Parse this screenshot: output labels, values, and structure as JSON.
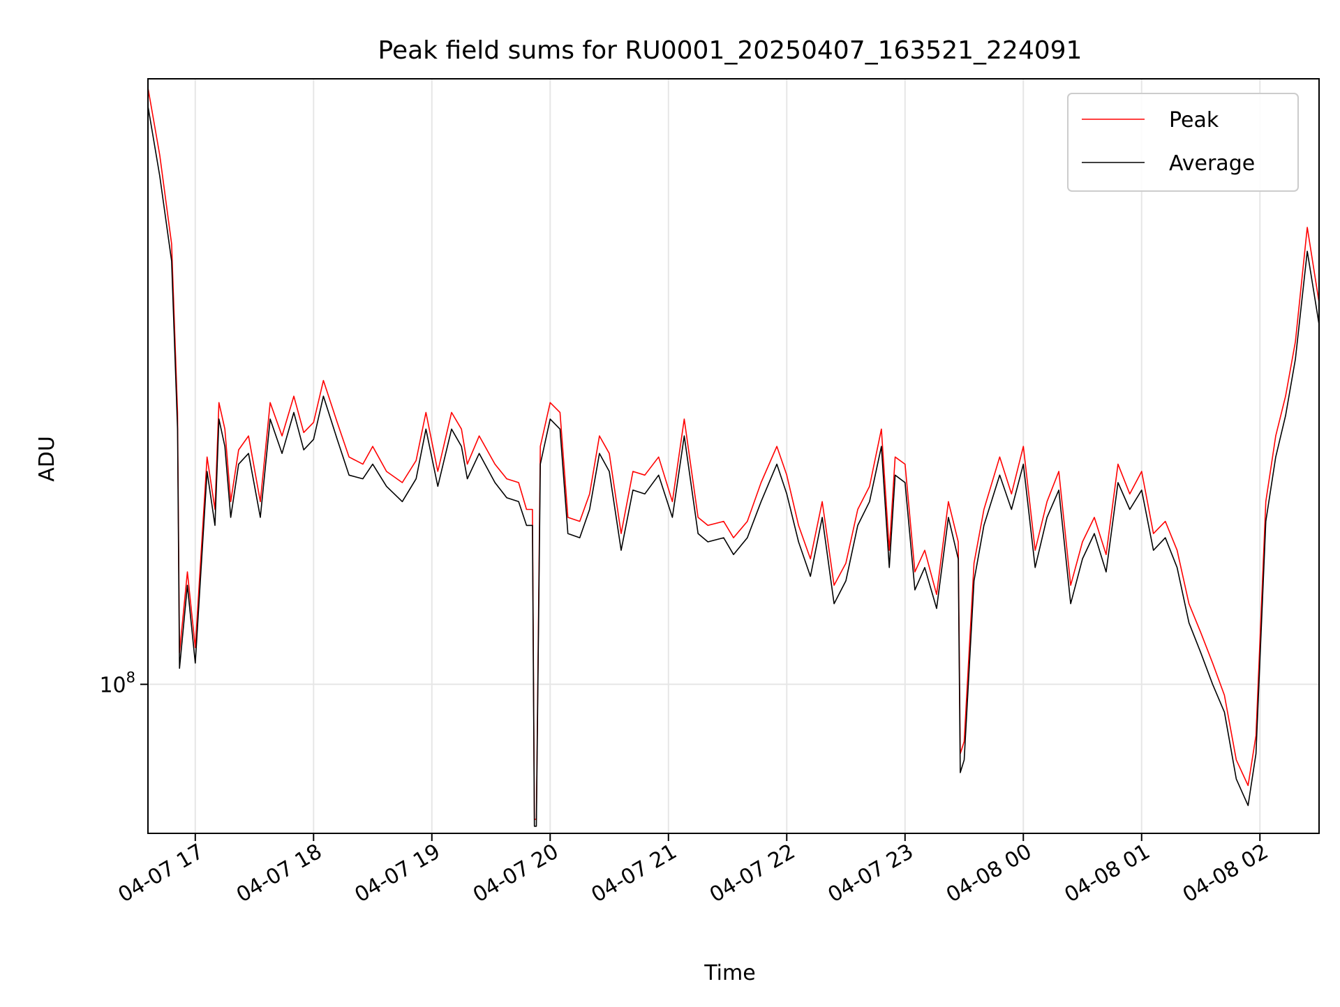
{
  "chart_data": {
    "type": "line",
    "title": "Peak field sums for RU0001_20250407_163521_224091",
    "xlabel": "Time",
    "ylabel": "ADU",
    "yscale": "log",
    "grid": true,
    "legend": "top-right",
    "xlim": [
      "2025-04-07 16:36",
      "2025-04-08 02:30"
    ],
    "ylim": [
      76000000,
      305000000
    ],
    "x_ticks": [
      {
        "x": "2025-04-07 17:00",
        "label": "04-07 17"
      },
      {
        "x": "2025-04-07 18:00",
        "label": "04-07 18"
      },
      {
        "x": "2025-04-07 19:00",
        "label": "04-07 19"
      },
      {
        "x": "2025-04-07 20:00",
        "label": "04-07 20"
      },
      {
        "x": "2025-04-07 21:00",
        "label": "04-07 21"
      },
      {
        "x": "2025-04-07 22:00",
        "label": "04-07 22"
      },
      {
        "x": "2025-04-07 23:00",
        "label": "04-07 23"
      },
      {
        "x": "2025-04-08 00:00",
        "label": "04-08 00"
      },
      {
        "x": "2025-04-08 01:00",
        "label": "04-08 01"
      },
      {
        "x": "2025-04-08 02:00",
        "label": "04-08 02"
      }
    ],
    "y_ticks": [
      {
        "y": 100000000,
        "base": "10",
        "exp": "8"
      }
    ],
    "x": [
      "2025-04-07 16:36",
      "2025-04-07 16:42",
      "2025-04-07 16:48",
      "2025-04-07 16:51",
      "2025-04-07 16:52",
      "2025-04-07 16:56",
      "2025-04-07 17:00",
      "2025-04-07 17:06",
      "2025-04-07 17:10",
      "2025-04-07 17:12",
      "2025-04-07 17:15",
      "2025-04-07 17:18",
      "2025-04-07 17:22",
      "2025-04-07 17:27",
      "2025-04-07 17:33",
      "2025-04-07 17:38",
      "2025-04-07 17:44",
      "2025-04-07 17:50",
      "2025-04-07 17:55",
      "2025-04-07 18:00",
      "2025-04-07 18:05",
      "2025-04-07 18:12",
      "2025-04-07 18:18",
      "2025-04-07 18:25",
      "2025-04-07 18:30",
      "2025-04-07 18:37",
      "2025-04-07 18:45",
      "2025-04-07 18:52",
      "2025-04-07 18:57",
      "2025-04-07 19:03",
      "2025-04-07 19:10",
      "2025-04-07 19:15",
      "2025-04-07 19:18",
      "2025-04-07 19:24",
      "2025-04-07 19:32",
      "2025-04-07 19:38",
      "2025-04-07 19:44",
      "2025-04-07 19:48",
      "2025-04-07 19:51",
      "2025-04-07 19:52",
      "2025-04-07 19:53",
      "2025-04-07 19:55",
      "2025-04-07 20:00",
      "2025-04-07 20:05",
      "2025-04-07 20:09",
      "2025-04-07 20:15",
      "2025-04-07 20:20",
      "2025-04-07 20:25",
      "2025-04-07 20:30",
      "2025-04-07 20:36",
      "2025-04-07 20:42",
      "2025-04-07 20:48",
      "2025-04-07 20:55",
      "2025-04-07 21:02",
      "2025-04-07 21:08",
      "2025-04-07 21:15",
      "2025-04-07 21:20",
      "2025-04-07 21:28",
      "2025-04-07 21:33",
      "2025-04-07 21:40",
      "2025-04-07 21:47",
      "2025-04-07 21:55",
      "2025-04-07 22:00",
      "2025-04-07 22:06",
      "2025-04-07 22:12",
      "2025-04-07 22:18",
      "2025-04-07 22:24",
      "2025-04-07 22:30",
      "2025-04-07 22:36",
      "2025-04-07 22:42",
      "2025-04-07 22:48",
      "2025-04-07 22:52",
      "2025-04-07 22:55",
      "2025-04-07 23:00",
      "2025-04-07 23:05",
      "2025-04-07 23:10",
      "2025-04-07 23:16",
      "2025-04-07 23:22",
      "2025-04-07 23:27",
      "2025-04-07 23:28",
      "2025-04-07 23:30",
      "2025-04-07 23:35",
      "2025-04-07 23:40",
      "2025-04-07 23:48",
      "2025-04-07 23:54",
      "2025-04-08 00:00",
      "2025-04-08 00:06",
      "2025-04-08 00:12",
      "2025-04-08 00:18",
      "2025-04-08 00:24",
      "2025-04-08 00:30",
      "2025-04-08 00:36",
      "2025-04-08 00:42",
      "2025-04-08 00:48",
      "2025-04-08 00:54",
      "2025-04-08 01:00",
      "2025-04-08 01:06",
      "2025-04-08 01:12",
      "2025-04-08 01:18",
      "2025-04-08 01:24",
      "2025-04-08 01:30",
      "2025-04-08 01:36",
      "2025-04-08 01:42",
      "2025-04-08 01:48",
      "2025-04-08 01:54",
      "2025-04-08 01:58",
      "2025-04-08 02:03",
      "2025-04-08 02:08",
      "2025-04-08 02:13",
      "2025-04-08 02:18",
      "2025-04-08 02:24",
      "2025-04-08 02:30"
    ],
    "series": [
      {
        "name": "Peak",
        "color": "#ff0000",
        "values": [
          300000000,
          265000000,
          225000000,
          165000000,
          106000000,
          123000000,
          107000000,
          152000000,
          138000000,
          168000000,
          160000000,
          140000000,
          154000000,
          158000000,
          140000000,
          168000000,
          158000000,
          170000000,
          159000000,
          162000000,
          175000000,
          162000000,
          152000000,
          150000000,
          155000000,
          148000000,
          145000000,
          151000000,
          165000000,
          148000000,
          165000000,
          160000000,
          150000000,
          158000000,
          150000000,
          146000000,
          145000000,
          138000000,
          138000000,
          78000000,
          78000000,
          155000000,
          168000000,
          165000000,
          136000000,
          135000000,
          142000000,
          158000000,
          153000000,
          132000000,
          148000000,
          147000000,
          152000000,
          140000000,
          163000000,
          136000000,
          134000000,
          135000000,
          131000000,
          135000000,
          145000000,
          155000000,
          147000000,
          134000000,
          126000000,
          140000000,
          120000000,
          125000000,
          138000000,
          144000000,
          160000000,
          128000000,
          152000000,
          150000000,
          123000000,
          128000000,
          118000000,
          140000000,
          130000000,
          88000000,
          90000000,
          125000000,
          138000000,
          152000000,
          142000000,
          155000000,
          128000000,
          140000000,
          148000000,
          120000000,
          130000000,
          136000000,
          127000000,
          150000000,
          142000000,
          148000000,
          132000000,
          135000000,
          128000000,
          116000000,
          110000000,
          104000000,
          98000000,
          87000000,
          83000000,
          91000000,
          140000000,
          158000000,
          170000000,
          188000000,
          232000000,
          202000000
        ]
      },
      {
        "name": "Average",
        "color": "#000000",
        "values": [
          290000000,
          255000000,
          218000000,
          160000000,
          103000000,
          120000000,
          104000000,
          148000000,
          134000000,
          163000000,
          155000000,
          136000000,
          150000000,
          153000000,
          136000000,
          163000000,
          153000000,
          165000000,
          154000000,
          157000000,
          170000000,
          157000000,
          147000000,
          146000000,
          150000000,
          144000000,
          140000000,
          146000000,
          160000000,
          144000000,
          160000000,
          155000000,
          146000000,
          153000000,
          145000000,
          141000000,
          140000000,
          134000000,
          134000000,
          77000000,
          77000000,
          150000000,
          163000000,
          160000000,
          132000000,
          131000000,
          138000000,
          153000000,
          148000000,
          128000000,
          143000000,
          142000000,
          147000000,
          136000000,
          158000000,
          132000000,
          130000000,
          131000000,
          127000000,
          131000000,
          140000000,
          150000000,
          142000000,
          130000000,
          122000000,
          136000000,
          116000000,
          121000000,
          134000000,
          140000000,
          155000000,
          124000000,
          147000000,
          145000000,
          119000000,
          124000000,
          115000000,
          136000000,
          126000000,
          85000000,
          87000000,
          121000000,
          134000000,
          147000000,
          138000000,
          150000000,
          124000000,
          136000000,
          143000000,
          116000000,
          126000000,
          132000000,
          123000000,
          145000000,
          138000000,
          143000000,
          128000000,
          131000000,
          124000000,
          112000000,
          106000000,
          100000000,
          95000000,
          84000000,
          80000000,
          88000000,
          135000000,
          152000000,
          164000000,
          182000000,
          222000000,
          194000000
        ]
      }
    ]
  }
}
